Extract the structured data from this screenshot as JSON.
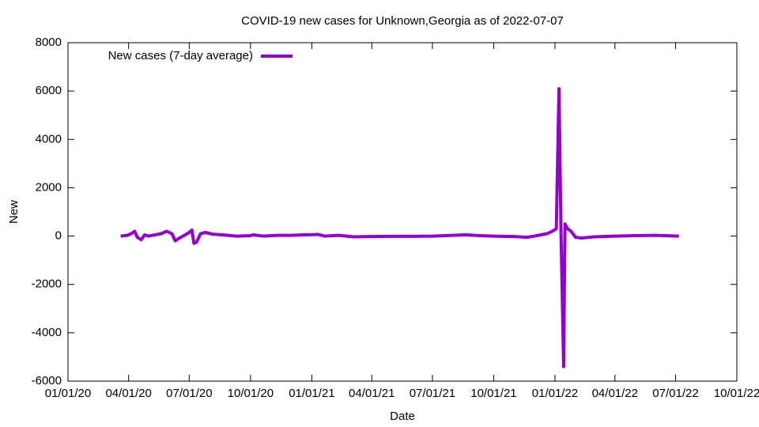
{
  "chart_data": {
    "type": "line",
    "title": "COVID-19 new cases for Unknown,Georgia as of 2022-07-07",
    "x_label": "Date",
    "y_label": "New",
    "legend": "top-left",
    "x": [
      "2020-03-20",
      "2020-03-30",
      "2020-04-05",
      "2020-04-10",
      "2020-04-14",
      "2020-04-20",
      "2020-04-25",
      "2020-05-01",
      "2020-05-10",
      "2020-05-20",
      "2020-05-28",
      "2020-06-05",
      "2020-06-10",
      "2020-06-15",
      "2020-06-25",
      "2020-07-01",
      "2020-07-05",
      "2020-07-08",
      "2020-07-12",
      "2020-07-18",
      "2020-07-25",
      "2020-08-05",
      "2020-08-20",
      "2020-09-10",
      "2020-10-01",
      "2020-10-05",
      "2020-10-20",
      "2020-11-10",
      "2020-12-01",
      "2020-12-20",
      "2021-01-05",
      "2021-01-10",
      "2021-01-20",
      "2021-02-10",
      "2021-03-05",
      "2021-04-01",
      "2021-05-01",
      "2021-06-01",
      "2021-07-01",
      "2021-08-01",
      "2021-08-20",
      "2021-09-10",
      "2021-10-01",
      "2021-11-01",
      "2021-11-20",
      "2021-12-01",
      "2021-12-20",
      "2021-12-28",
      "2022-01-03",
      "2022-01-07",
      "2022-01-10",
      "2022-01-14",
      "2022-01-16",
      "2022-01-20",
      "2022-01-25",
      "2022-02-01",
      "2022-02-10",
      "2022-03-01",
      "2022-04-01",
      "2022-05-01",
      "2022-06-01",
      "2022-07-06"
    ],
    "series": [
      {
        "name": "New cases (7-day average)",
        "color": "#9400d3",
        "values": [
          0,
          30,
          100,
          200,
          -50,
          -150,
          50,
          0,
          50,
          100,
          200,
          100,
          -200,
          -100,
          50,
          150,
          250,
          -300,
          -250,
          100,
          150,
          80,
          50,
          0,
          20,
          50,
          0,
          30,
          30,
          50,
          60,
          70,
          0,
          30,
          -30,
          -20,
          -10,
          -10,
          0,
          30,
          50,
          20,
          0,
          -20,
          -50,
          0,
          100,
          200,
          300,
          6100,
          200,
          -5400,
          500,
          300,
          200,
          -50,
          -80,
          -30,
          0,
          20,
          30,
          0
        ]
      }
    ],
    "xlim": [
      "2020-01-01",
      "2022-10-01"
    ],
    "xticks": [
      {
        "value": "2020-01-01",
        "label": "01/01/20"
      },
      {
        "value": "2020-04-01",
        "label": "04/01/20"
      },
      {
        "value": "2020-07-01",
        "label": "07/01/20"
      },
      {
        "value": "2020-10-01",
        "label": "10/01/20"
      },
      {
        "value": "2021-01-01",
        "label": "01/01/21"
      },
      {
        "value": "2021-04-01",
        "label": "04/01/21"
      },
      {
        "value": "2021-07-01",
        "label": "07/01/21"
      },
      {
        "value": "2021-10-01",
        "label": "10/01/21"
      },
      {
        "value": "2022-01-01",
        "label": "01/01/22"
      },
      {
        "value": "2022-04-01",
        "label": "04/01/22"
      },
      {
        "value": "2022-07-01",
        "label": "07/01/22"
      },
      {
        "value": "2022-10-01",
        "label": "10/01/22"
      }
    ],
    "ylim": [
      -6000,
      8000
    ],
    "yticks": [
      -6000,
      -4000,
      -2000,
      0,
      2000,
      4000,
      6000,
      8000
    ]
  }
}
